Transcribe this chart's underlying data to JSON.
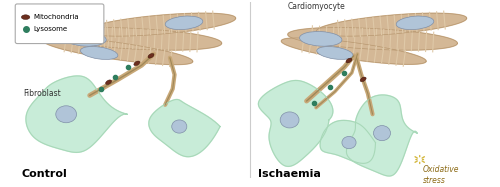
{
  "bg_color": "#ffffff",
  "title_left": "Control",
  "title_right": "Ischaemia",
  "fibroblast_label": "Fibroblast",
  "cardiomyocyte_label": "Cardiomyocyte",
  "oxidative_stress_label": "Oxidative\nstress",
  "lysosome_label": "Lysosome",
  "mitochondria_label": "Mitochondria",
  "cell_fill": "#c8ecd8",
  "cell_edge": "#a8d8b8",
  "cardiomyocyte_fill": "#d4b896",
  "cardiomyocyte_edge": "#b89870",
  "cardiomyocyte_stripe": "#dfc9a8",
  "nucleus_fill": "#b0c4d8",
  "nucleus_edge": "#8090a8",
  "tnt_color": "#c8a878",
  "tnt_edge": "#a08858",
  "lysosome_color": "#2e7d5e",
  "mitochondria_color": "#6b2e1e",
  "divider_color": "#cccccc",
  "oxidative_color": "#d4b840"
}
